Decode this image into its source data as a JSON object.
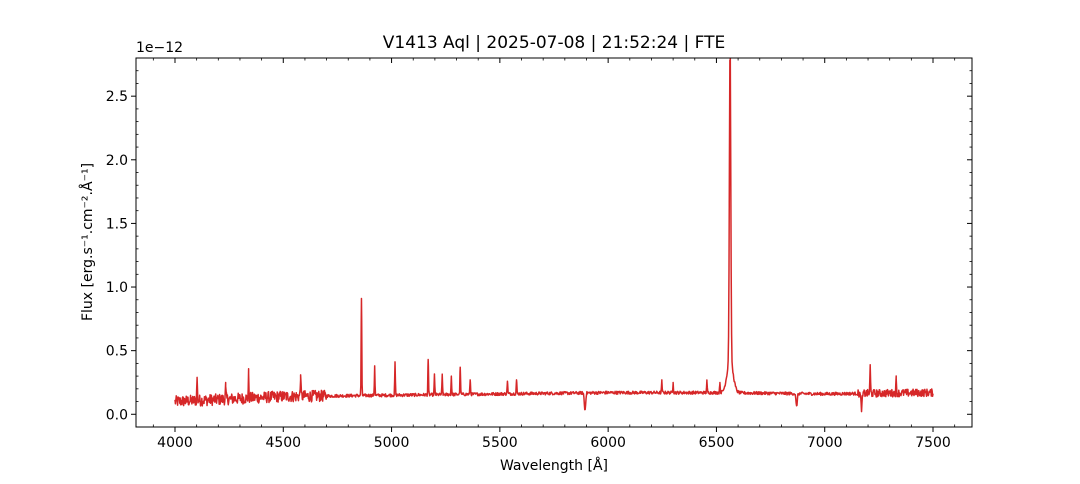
{
  "chart_data": {
    "type": "line",
    "title": "V1413 Aql | 2025-07-08 | 21:52:24 | FTE",
    "xlabel": "Wavelength [Å]",
    "ylabel": "Flux [erg.s⁻¹.cm⁻².Å⁻¹]",
    "y_offset_label": "1e−12",
    "xlim": [
      3820,
      7680
    ],
    "ylim": [
      -0.1,
      2.8
    ],
    "y_scale": "×1e-12",
    "grid": false,
    "legend": "none",
    "x_ticks": [
      4000,
      4500,
      5000,
      5500,
      6000,
      6500,
      7000,
      7500
    ],
    "y_ticks": [
      0.0,
      0.5,
      1.0,
      1.5,
      2.0,
      2.5
    ],
    "y_tick_labels": [
      "0.0",
      "0.5",
      "1.0",
      "1.5",
      "2.0",
      "2.5"
    ],
    "series": [
      {
        "color": "#d62728",
        "x_range": [
          4000,
          7500
        ],
        "continuum": [
          [
            4000,
            0.1
          ],
          [
            4500,
            0.14
          ],
          [
            5000,
            0.15
          ],
          [
            5500,
            0.16
          ],
          [
            6000,
            0.17
          ],
          [
            6500,
            0.17
          ],
          [
            7000,
            0.16
          ],
          [
            7500,
            0.17
          ]
        ],
        "emission_lines": [
          {
            "x": 4102,
            "y": 0.29
          },
          {
            "x": 4234,
            "y": 0.22
          },
          {
            "x": 4340,
            "y": 0.32
          },
          {
            "x": 4580,
            "y": 0.31
          },
          {
            "x": 4861,
            "y": 0.91
          },
          {
            "x": 4922,
            "y": 0.38
          },
          {
            "x": 5016,
            "y": 0.41
          },
          {
            "x": 5169,
            "y": 0.43
          },
          {
            "x": 5198,
            "y": 0.31
          },
          {
            "x": 5234,
            "y": 0.31
          },
          {
            "x": 5276,
            "y": 0.3
          },
          {
            "x": 5317,
            "y": 0.37
          },
          {
            "x": 5363,
            "y": 0.27
          },
          {
            "x": 5535,
            "y": 0.26
          },
          {
            "x": 5577,
            "y": 0.27
          },
          {
            "x": 6248,
            "y": 0.26
          },
          {
            "x": 6300,
            "y": 0.25
          },
          {
            "x": 6456,
            "y": 0.26
          },
          {
            "x": 6516,
            "y": 0.25
          },
          {
            "x": 6563,
            "y": 2.66
          },
          {
            "x": 7210,
            "y": 0.38
          },
          {
            "x": 7330,
            "y": 0.28
          }
        ],
        "absorption_lines": [
          {
            "x": 5893,
            "y": 0.03
          },
          {
            "x": 6870,
            "y": 0.06
          },
          {
            "x": 7170,
            "y": 0.05
          }
        ]
      }
    ]
  }
}
